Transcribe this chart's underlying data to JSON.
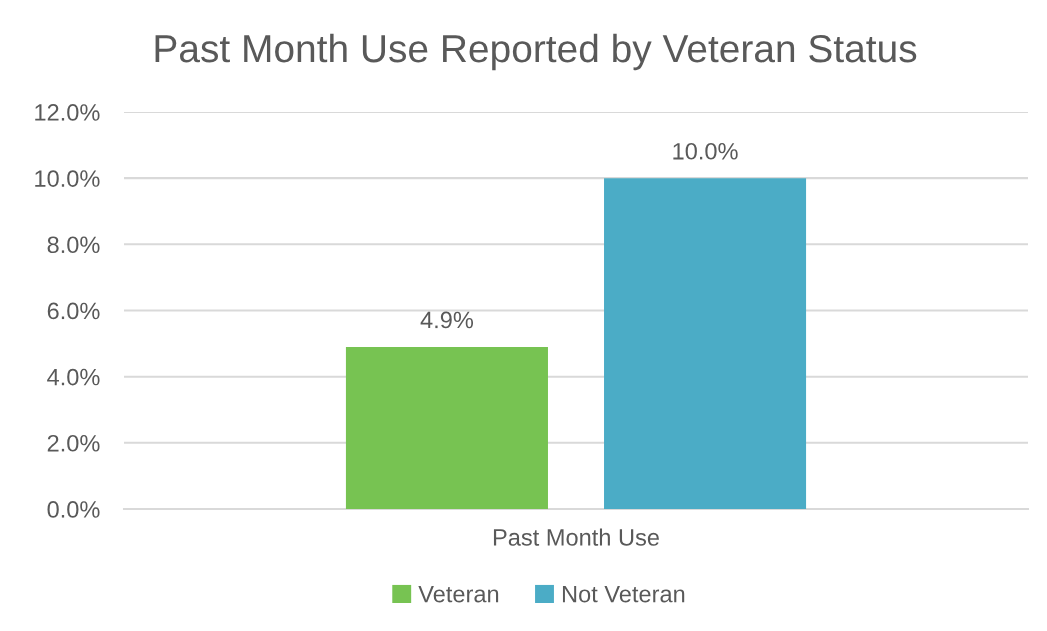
{
  "chart_data": {
    "type": "bar",
    "title": "Past Month Use Reported by Veteran Status",
    "categories": [
      "Past Month Use"
    ],
    "series": [
      {
        "name": "Veteran",
        "color": "#77c352",
        "values": [
          4.9
        ],
        "value_labels": [
          "4.9%"
        ]
      },
      {
        "name": "Not Veteran",
        "color": "#4bacc6",
        "values": [
          10.0
        ],
        "value_labels": [
          "10.0%"
        ]
      }
    ],
    "ylim": [
      0,
      12
    ],
    "yticks": [
      {
        "value": 0,
        "label": "0.0%"
      },
      {
        "value": 2,
        "label": "2.0%"
      },
      {
        "value": 4,
        "label": "4.0%"
      },
      {
        "value": 6,
        "label": "6.0%"
      },
      {
        "value": 8,
        "label": "8.0%"
      },
      {
        "value": 10,
        "label": "10.0%"
      },
      {
        "value": 12,
        "label": "12.0%"
      }
    ],
    "grid": "y",
    "legend": "bottom"
  }
}
